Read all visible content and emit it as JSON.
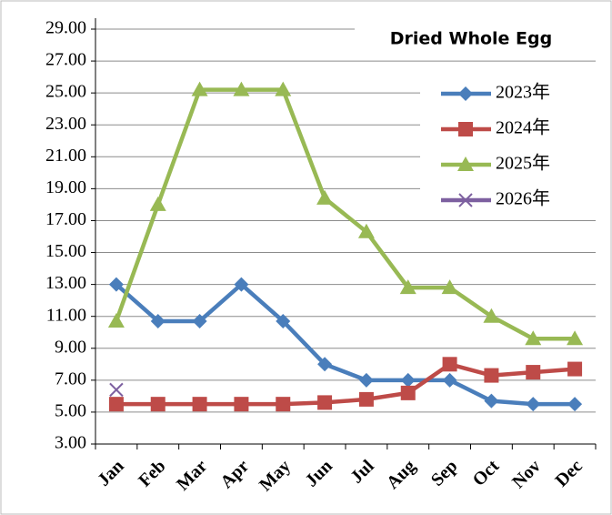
{
  "chart_data": {
    "type": "line",
    "title": "Dried Whole Egg",
    "categories": [
      "Jan",
      "Feb",
      "Mar",
      "Apr",
      "May",
      "Jun",
      "Jul",
      "Aug",
      "Sep",
      "Oct",
      "Nov",
      "Dec"
    ],
    "series": [
      {
        "name": "2023年",
        "color": "#4a7ebb",
        "marker": "diamond",
        "values": [
          13.0,
          10.7,
          10.7,
          13.0,
          10.7,
          8.0,
          7.0,
          7.0,
          7.0,
          5.7,
          5.5,
          5.5
        ]
      },
      {
        "name": "2024年",
        "color": "#be4b48",
        "marker": "square",
        "values": [
          5.5,
          5.5,
          5.5,
          5.5,
          5.5,
          5.6,
          5.8,
          6.2,
          8.0,
          7.3,
          7.5,
          7.7
        ]
      },
      {
        "name": "2025年",
        "color": "#98b954",
        "marker": "triangle",
        "values": [
          10.7,
          18.0,
          25.2,
          25.2,
          25.2,
          18.4,
          16.3,
          12.8,
          12.8,
          11.0,
          9.6,
          9.6
        ]
      },
      {
        "name": "2026年",
        "color": "#7d60a0",
        "marker": "x",
        "values": [
          6.4,
          null,
          null,
          null,
          null,
          null,
          null,
          null,
          null,
          null,
          null,
          null
        ]
      }
    ],
    "ylim": [
      3,
      29
    ],
    "yticks": [
      {
        "value": 3,
        "label": "3.00"
      },
      {
        "value": 5,
        "label": "5.00"
      },
      {
        "value": 7,
        "label": "7.00"
      },
      {
        "value": 9,
        "label": "9.00"
      },
      {
        "value": 11,
        "label": "11.00"
      },
      {
        "value": 13,
        "label": "13.00"
      },
      {
        "value": 15,
        "label": "15.00"
      },
      {
        "value": 17,
        "label": "17.00"
      },
      {
        "value": 19,
        "label": "19.00"
      },
      {
        "value": 21,
        "label": "21.00"
      },
      {
        "value": 23,
        "label": "23.00"
      },
      {
        "value": 25,
        "label": "25.00"
      },
      {
        "value": 27,
        "label": "27.00"
      },
      {
        "value": 29,
        "label": "29.00"
      }
    ],
    "grid": true,
    "legend": "upper right"
  }
}
